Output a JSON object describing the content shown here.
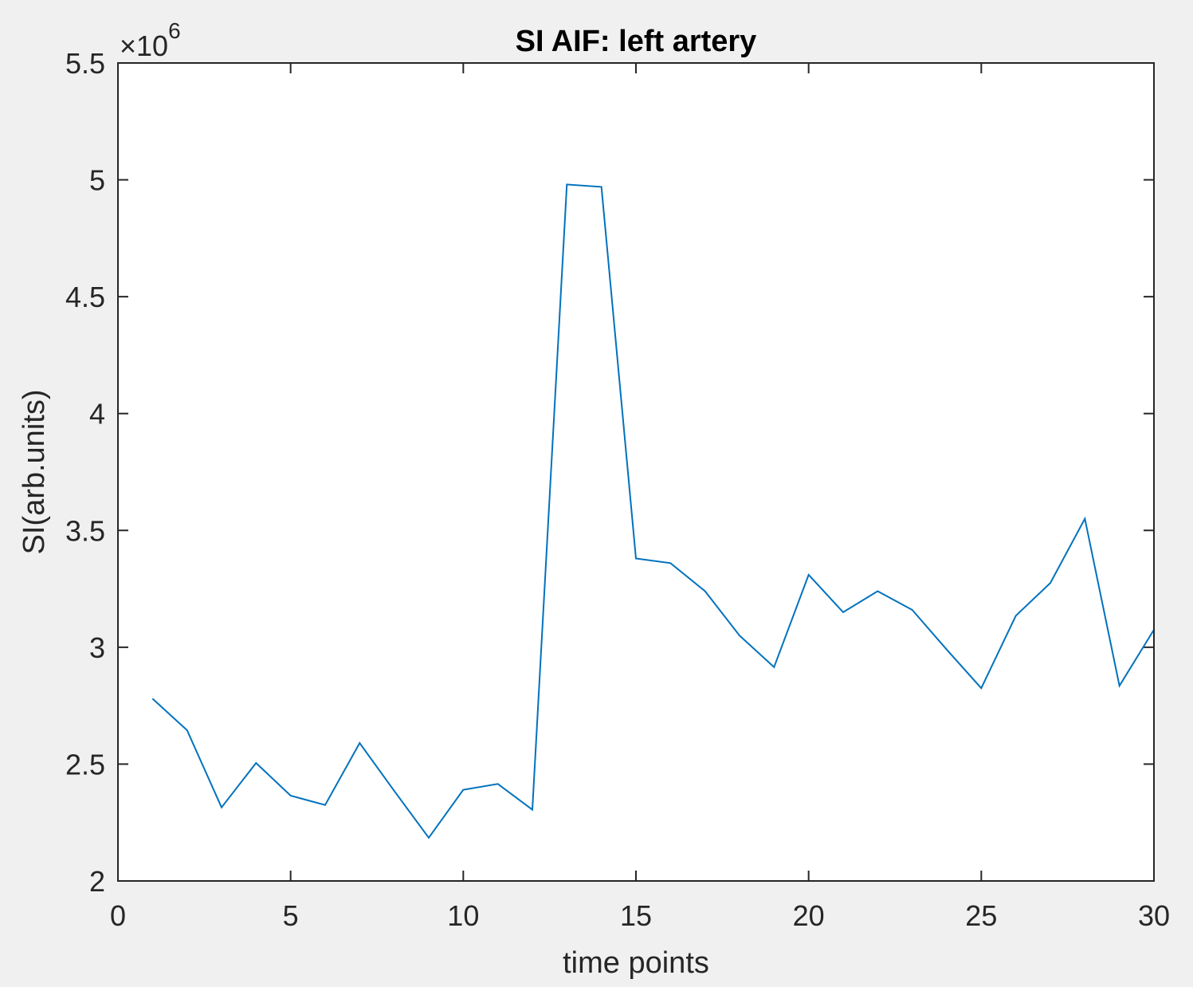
{
  "chart_data": {
    "type": "line",
    "title": "SI AIF: left artery",
    "xlabel": "time points",
    "ylabel": "SI(arb.units)",
    "y_multiplier_prefix": "×10",
    "y_multiplier_exponent": "6",
    "xlim": [
      0,
      30
    ],
    "ylim": [
      2,
      5.5
    ],
    "x_ticks": [
      0,
      5,
      10,
      15,
      20,
      25,
      30
    ],
    "x_tick_labels": [
      "0",
      "5",
      "10",
      "15",
      "20",
      "25",
      "30"
    ],
    "y_ticks": [
      2,
      2.5,
      3,
      3.5,
      4,
      4.5,
      5,
      5.5
    ],
    "y_tick_labels": [
      "2",
      "2.5",
      "3",
      "3.5",
      "4",
      "4.5",
      "5",
      "5.5"
    ],
    "grid": false,
    "series": [
      {
        "color": "#0072BD",
        "x": [
          1,
          2,
          3,
          4,
          5,
          6,
          7,
          8,
          9,
          10,
          11,
          12,
          13,
          14,
          15,
          16,
          17,
          18,
          19,
          20,
          21,
          22,
          23,
          24,
          25,
          26,
          27,
          28,
          29,
          30
        ],
        "values": [
          2.78,
          2.645,
          2.315,
          2.505,
          2.365,
          2.325,
          2.59,
          2.385,
          2.185,
          2.39,
          2.415,
          2.305,
          4.98,
          4.97,
          3.38,
          3.36,
          3.24,
          3.05,
          2.915,
          3.31,
          3.15,
          3.24,
          3.16,
          2.99,
          2.825,
          3.135,
          3.275,
          3.55,
          2.835,
          3.075
        ]
      }
    ]
  }
}
